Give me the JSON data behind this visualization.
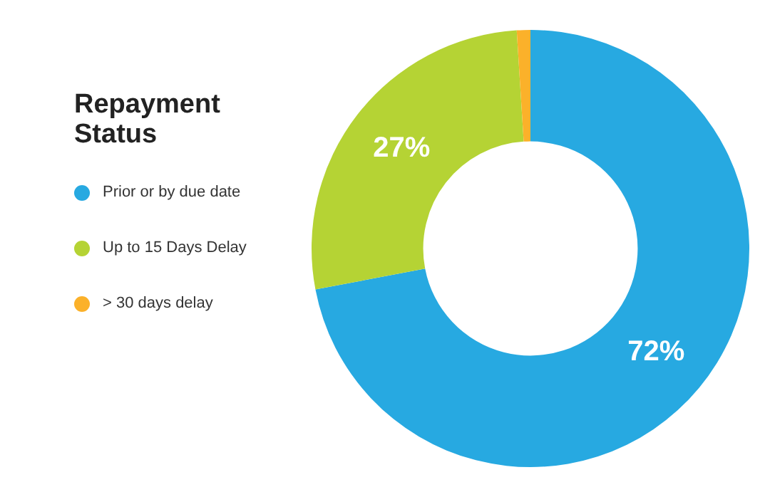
{
  "chart_data": {
    "type": "donut",
    "legend_title": "Repayment Status",
    "legend": "left",
    "categories": [
      "Prior or by due date",
      "Up to 15 Days Delay",
      "> 30 days delay"
    ],
    "values": [
      72,
      27,
      1
    ],
    "colors": [
      "#27a9e1",
      "#b5d334",
      "#fbb12a"
    ],
    "value_labels": [
      "72%",
      "27%",
      null
    ]
  }
}
